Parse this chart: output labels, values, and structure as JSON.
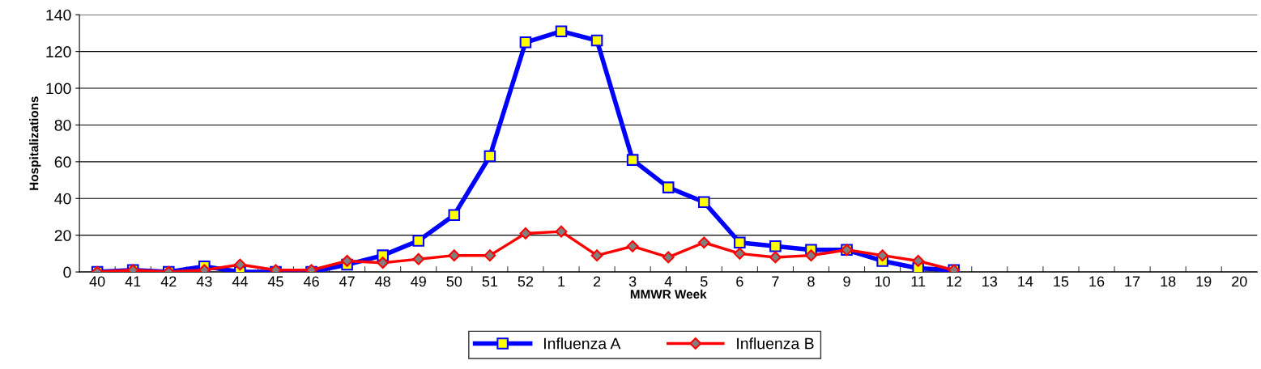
{
  "chart_data": {
    "type": "line",
    "xlabel": "MMWR Week",
    "ylabel": "Hospitalizations",
    "categories": [
      "40",
      "41",
      "42",
      "43",
      "44",
      "45",
      "46",
      "47",
      "48",
      "49",
      "50",
      "51",
      "52",
      "1",
      "2",
      "3",
      "4",
      "5",
      "6",
      "7",
      "8",
      "9",
      "10",
      "11",
      "12",
      "13",
      "14",
      "15",
      "16",
      "17",
      "18",
      "19",
      "20"
    ],
    "series": [
      {
        "name": "Influenza A",
        "color": "#0000ff",
        "marker": "square",
        "values": [
          0,
          1,
          0,
          3,
          0,
          0,
          0,
          4,
          9,
          17,
          31,
          63,
          125,
          131,
          126,
          61,
          46,
          38,
          16,
          14,
          12,
          12,
          6,
          2,
          1,
          null,
          null,
          null,
          null,
          null,
          null,
          null,
          null
        ]
      },
      {
        "name": "Influenza B",
        "color": "#ff0000",
        "marker": "diamond",
        "values": [
          0,
          1,
          0,
          1,
          4,
          1,
          1,
          6,
          5,
          7,
          9,
          9,
          21,
          22,
          9,
          14,
          8,
          16,
          10,
          8,
          9,
          12,
          9,
          6,
          1,
          null,
          null,
          null,
          null,
          null,
          null,
          null,
          null
        ]
      }
    ],
    "ylim": [
      0,
      140
    ],
    "yticks": [
      0,
      20,
      40,
      60,
      80,
      100,
      120,
      140
    ],
    "grid": "y",
    "legend": "bottom"
  }
}
